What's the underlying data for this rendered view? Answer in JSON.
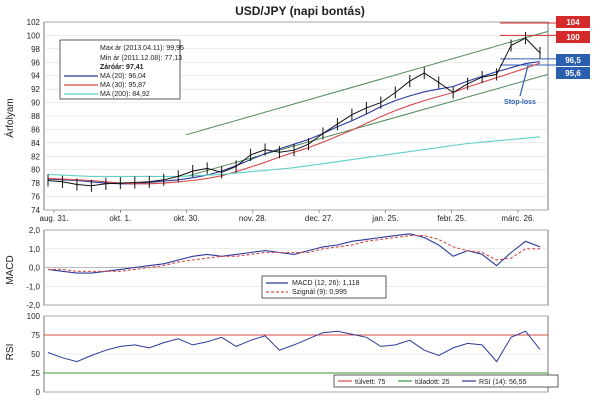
{
  "chart_data": [
    {
      "type": "line",
      "title": "USD/JPY (napi bontás)",
      "ylabel": "Árfolyam",
      "ylim": [
        74,
        102
      ],
      "yticks": [
        "74",
        "76",
        "78",
        "80",
        "82",
        "84",
        "86",
        "88",
        "90",
        "92",
        "94",
        "96",
        "98",
        "100",
        "102"
      ],
      "x_tick_labels": [
        "aug. 31.",
        "okt. 1.",
        "okt. 30.",
        "nov. 28.",
        "dec. 27.",
        "jan. 25.",
        "febr. 25.",
        "márc. 26."
      ],
      "info_box": [
        "Max ár (2013.04.11): 99,95",
        "Min ár (2011.12.08): 77,13",
        "Záróár: 97,41"
      ],
      "series": [
        {
          "name": "MA (20): 96,04",
          "color": "#2b3a9a",
          "values": [
            78.6,
            78.5,
            78.4,
            78.2,
            78.0,
            77.9,
            77.9,
            78.1,
            78.3,
            78.5,
            78.8,
            79.2,
            79.8,
            80.6,
            81.5,
            82.4,
            83.1,
            83.8,
            84.5,
            85.4,
            86.4,
            87.3,
            88.3,
            89.4,
            90.3,
            91.0,
            91.6,
            92.0,
            92.4,
            93.2,
            93.9,
            94.6,
            95.2,
            95.8,
            96.1
          ]
        },
        {
          "name": "MA (30): 95,87",
          "color": "#d64a4a",
          "values": [
            78.7,
            78.6,
            78.5,
            78.4,
            78.2,
            78.0,
            77.9,
            77.9,
            78.0,
            78.2,
            78.4,
            78.7,
            79.1,
            79.7,
            80.4,
            81.1,
            81.9,
            82.6,
            83.3,
            84.1,
            85.0,
            85.9,
            86.9,
            87.9,
            88.8,
            89.6,
            90.3,
            90.9,
            91.5,
            92.3,
            93.0,
            93.7,
            94.4,
            95.1,
            95.9
          ]
        },
        {
          "name": "MA (200): 84,92",
          "color": "#5fd0c6",
          "values": [
            79.3,
            79.2,
            79.1,
            79.0,
            79.0,
            79.0,
            79.0,
            79.0,
            79.0,
            79.0,
            79.1,
            79.2,
            79.3,
            79.5,
            79.7,
            79.9,
            80.1,
            80.3,
            80.6,
            80.9,
            81.2,
            81.5,
            81.8,
            82.1,
            82.4,
            82.7,
            83.0,
            83.3,
            83.6,
            83.9,
            84.1,
            84.3,
            84.5,
            84.7,
            84.9
          ]
        }
      ],
      "close_values": [
        78.4,
        78.2,
        77.8,
        77.6,
        77.9,
        78.0,
        78.1,
        78.2,
        78.5,
        79.0,
        79.8,
        80.2,
        79.6,
        80.5,
        82.2,
        83.0,
        82.6,
        82.9,
        83.8,
        85.4,
        86.8,
        88.2,
        89.2,
        90.0,
        91.5,
        93.2,
        94.4,
        93.0,
        91.5,
        92.8,
        93.8,
        94.2,
        98.5,
        99.6,
        97.4
      ],
      "annotations": [
        "104",
        "100",
        "96,5",
        "95,6",
        "Stop-loss"
      ],
      "annotation_values": [
        104,
        100,
        96.5,
        95.6
      ]
    },
    {
      "type": "line",
      "ylabel": "MACD",
      "ylim": [
        -2.0,
        2.0
      ],
      "yticks": [
        "-2,0",
        "-1,0",
        "0,0",
        "1,0",
        "2,0"
      ],
      "series": [
        {
          "name": "MACD (12, 26): 1,118",
          "color": "#2b3a9a",
          "values": [
            -0.1,
            -0.2,
            -0.3,
            -0.3,
            -0.2,
            -0.1,
            0.0,
            0.1,
            0.2,
            0.4,
            0.6,
            0.7,
            0.6,
            0.7,
            0.8,
            0.9,
            0.8,
            0.7,
            0.9,
            1.1,
            1.2,
            1.4,
            1.5,
            1.6,
            1.7,
            1.8,
            1.6,
            1.2,
            0.6,
            0.9,
            0.7,
            0.1,
            0.8,
            1.4,
            1.1
          ]
        },
        {
          "name": "Szignál (9): 0,995",
          "color": "#d64a4a",
          "dashed": true,
          "values": [
            -0.1,
            -0.1,
            -0.2,
            -0.2,
            -0.2,
            -0.2,
            -0.1,
            0.0,
            0.1,
            0.3,
            0.4,
            0.5,
            0.6,
            0.6,
            0.7,
            0.8,
            0.8,
            0.8,
            0.8,
            1.0,
            1.1,
            1.2,
            1.4,
            1.5,
            1.6,
            1.7,
            1.7,
            1.5,
            1.1,
            0.9,
            0.8,
            0.4,
            0.5,
            1.0,
            1.0
          ]
        }
      ]
    },
    {
      "type": "line",
      "ylabel": "RSI",
      "ylim": [
        0,
        100
      ],
      "yticks": [
        "0",
        "25",
        "50",
        "75",
        "100"
      ],
      "series": [
        {
          "name": "túlvett: 75",
          "color": "#d64a4a",
          "values": [
            75
          ]
        },
        {
          "name": "túladott: 25",
          "color": "#3a9a3a",
          "values": [
            25
          ]
        },
        {
          "name": "RSI (14): 56,55",
          "color": "#2b3a9a",
          "values": [
            52,
            45,
            40,
            48,
            55,
            60,
            62,
            58,
            65,
            70,
            62,
            66,
            72,
            60,
            68,
            74,
            55,
            62,
            70,
            78,
            80,
            76,
            72,
            60,
            62,
            68,
            55,
            48,
            58,
            64,
            62,
            40,
            72,
            80,
            56
          ]
        }
      ]
    }
  ]
}
